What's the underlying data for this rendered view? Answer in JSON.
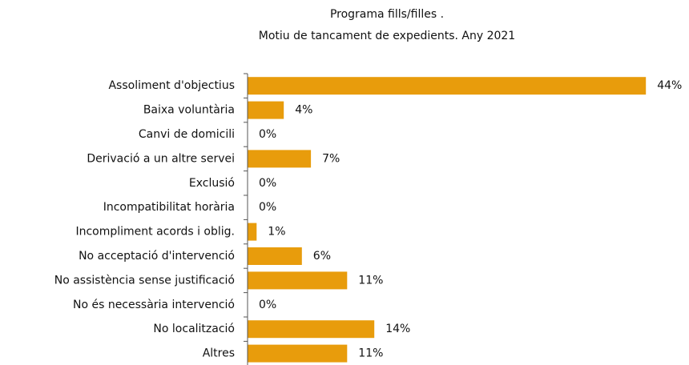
{
  "chart_data": {
    "type": "bar",
    "orientation": "horizontal",
    "title": "Programa fills/filles .",
    "subtitle": "Motiu de tancament de expedients. Any 2021",
    "categories": [
      "Assoliment d'objectius",
      "Baixa voluntària",
      "Canvi de domicili",
      "Derivació a un altre servei",
      "Exclusió",
      "Incompatibilitat horària",
      "Incompliment acords i oblig.",
      "No acceptació d'intervenció",
      "No assistència sense justificació",
      "No és necessària intervenció",
      "No localització",
      "Altres"
    ],
    "values": [
      44,
      4,
      0,
      7,
      0,
      0,
      1,
      6,
      11,
      0,
      14,
      11
    ],
    "value_labels": [
      "44%",
      "4%",
      "0%",
      "7%",
      "0%",
      "0%",
      "1%",
      "6%",
      "11%",
      "0%",
      "14%",
      "11%"
    ],
    "color": "#e89c0c"
  }
}
